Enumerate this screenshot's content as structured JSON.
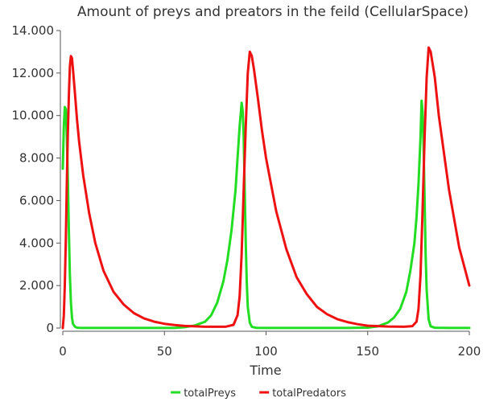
{
  "chart_data": {
    "type": "line",
    "title": "Amount of preys and preators in the feild (CellularSpace)",
    "xlabel": "Time",
    "ylabel": "",
    "xlim": [
      0,
      200
    ],
    "ylim": [
      0,
      14000
    ],
    "xticks": [
      0,
      50,
      100,
      150,
      200
    ],
    "xtick_labels": [
      "0",
      "50",
      "100",
      "150",
      "200"
    ],
    "yticks": [
      0,
      2000,
      4000,
      6000,
      8000,
      10000,
      12000,
      14000
    ],
    "ytick_labels": [
      "0",
      "2.000",
      "4.000",
      "6.000",
      "8.000",
      "10.000",
      "12.000",
      "14.000"
    ],
    "grid": false,
    "legend_position": "bottom-center",
    "series": [
      {
        "name": "totalPreys",
        "color": "#22dd22",
        "x": [
          0,
          0.5,
          1,
          1.5,
          2,
          2.5,
          3,
          3.5,
          4,
          4.5,
          5,
          6,
          7,
          8,
          10,
          20,
          40,
          55,
          60,
          65,
          70,
          73,
          76,
          79,
          81,
          83,
          85,
          86,
          87,
          88,
          88.5,
          89,
          89.5,
          90,
          90.5,
          91,
          92,
          93,
          95,
          100,
          120,
          140,
          150,
          155,
          160,
          163,
          166,
          169,
          171,
          173,
          174,
          175,
          176,
          176.5,
          177,
          177.5,
          178,
          178.5,
          179,
          180,
          181,
          183,
          190,
          200
        ],
        "y": [
          7500,
          9500,
          10400,
          10300,
          9000,
          7000,
          4500,
          2500,
          1200,
          500,
          200,
          60,
          20,
          10,
          5,
          5,
          5,
          5,
          40,
          120,
          300,
          600,
          1200,
          2200,
          3200,
          4600,
          6500,
          8000,
          9500,
          10600,
          10200,
          9000,
          6500,
          4000,
          2200,
          1000,
          250,
          60,
          10,
          5,
          5,
          5,
          20,
          80,
          260,
          500,
          900,
          1700,
          2700,
          4000,
          5200,
          6800,
          9000,
          10700,
          10200,
          8500,
          6000,
          3500,
          1800,
          400,
          80,
          15,
          5,
          5
        ]
      },
      {
        "name": "totalPredators",
        "color": "#ee1111",
        "x": [
          0,
          0.5,
          1,
          1.5,
          2,
          2.5,
          3,
          3.5,
          4,
          4.5,
          5,
          6,
          7,
          8,
          10,
          13,
          16,
          20,
          25,
          30,
          35,
          40,
          45,
          50,
          55,
          60,
          70,
          80,
          84,
          86,
          87,
          88,
          89,
          90,
          91,
          92,
          93,
          94,
          96,
          98,
          100,
          105,
          110,
          115,
          120,
          125,
          130,
          135,
          140,
          145,
          150,
          160,
          168,
          172,
          174,
          175,
          176,
          177,
          178,
          179,
          180,
          181,
          183,
          185,
          190,
          195,
          200
        ],
        "y": [
          0,
          600,
          2000,
          4200,
          6800,
          9200,
          11000,
          12300,
          12800,
          12700,
          12200,
          11000,
          9800,
          8800,
          7200,
          5400,
          4000,
          2700,
          1700,
          1100,
          700,
          450,
          300,
          200,
          140,
          100,
          60,
          60,
          150,
          600,
          1500,
          3500,
          6500,
          9500,
          12000,
          13000,
          12800,
          12200,
          10800,
          9300,
          8000,
          5500,
          3700,
          2400,
          1600,
          1000,
          650,
          420,
          280,
          180,
          110,
          70,
          60,
          90,
          300,
          900,
          2500,
          5500,
          9000,
          11800,
          13200,
          13000,
          11800,
          10000,
          6500,
          3800,
          2000
        ]
      }
    ]
  }
}
